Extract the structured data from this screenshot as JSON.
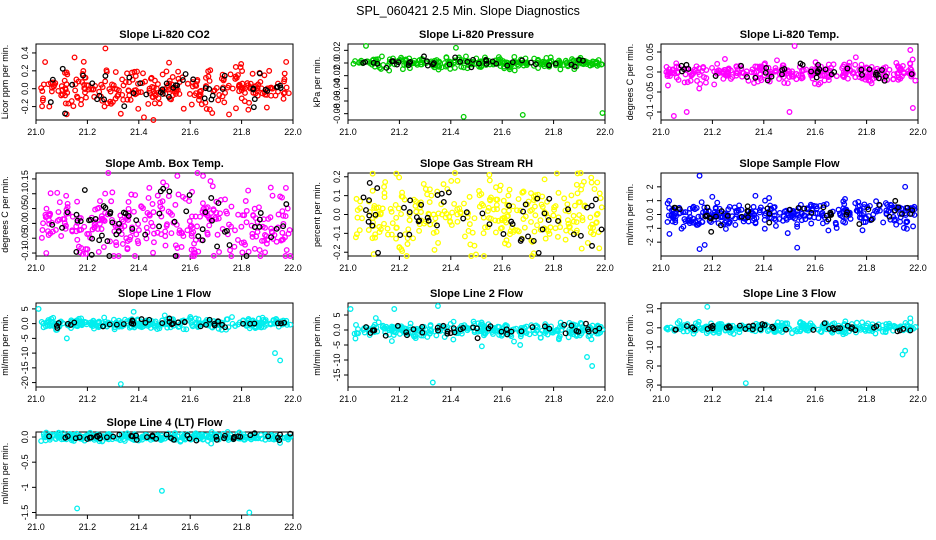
{
  "page_title": "SPL_060421  2.5 Min. Slope Diagnostics",
  "x_ticks": [
    21.0,
    21.2,
    21.4,
    21.6,
    21.8,
    22.0
  ],
  "chart_data": [
    {
      "type": "scatter",
      "title": "Slope Li-820 CO2",
      "ylabel": "Licor ppm per min.",
      "xlim": [
        21.0,
        22.0
      ],
      "ylim": [
        -0.35,
        0.5
      ],
      "yticks": [
        -0.2,
        0.0,
        0.2,
        0.4
      ],
      "color": "#ff0000",
      "black_color": "#000000",
      "spread": 0.12,
      "n": 280,
      "nb": 45,
      "outliers": [
        [
          21.27,
          0.45
        ],
        [
          21.33,
          -0.28
        ],
        [
          21.15,
          0.35
        ],
        [
          21.42,
          -0.32
        ]
      ]
    },
    {
      "type": "scatter",
      "title": "Slope Li-820 Pressure",
      "ylabel": "kPa per min.",
      "xlim": [
        21.0,
        22.0
      ],
      "ylim": [
        -0.09,
        0.03
      ],
      "yticks": [
        -0.08,
        -0.06,
        -0.04,
        -0.02,
        0.0,
        0.02
      ],
      "color": "#00cc00",
      "black_color": "#000000",
      "center": 0.0,
      "spread": 0.004,
      "n": 260,
      "nb": 40,
      "outliers": [
        [
          21.07,
          0.027
        ],
        [
          21.45,
          -0.085
        ],
        [
          21.68,
          -0.082
        ],
        [
          21.99,
          -0.079
        ],
        [
          21.16,
          -0.012
        ],
        [
          21.42,
          0.024
        ]
      ]
    },
    {
      "type": "scatter",
      "title": "Slope Li-820 Temp.",
      "ylabel": "degrees C per min.",
      "xlim": [
        21.0,
        22.0
      ],
      "ylim": [
        -0.12,
        0.07
      ],
      "yticks": [
        -0.1,
        -0.05,
        0.0,
        0.05
      ],
      "color": "#ff00ff",
      "black_color": "#000000",
      "spread": 0.012,
      "n": 300,
      "nb": 40,
      "outliers": [
        [
          21.05,
          -0.11
        ],
        [
          21.1,
          -0.1
        ],
        [
          21.5,
          -0.1
        ],
        [
          21.52,
          0.065
        ],
        [
          21.97,
          0.055
        ],
        [
          21.98,
          -0.09
        ]
      ]
    },
    {
      "type": "scatter",
      "title": "Slope Amb. Box Temp.",
      "ylabel": "degrees C per min.",
      "xlim": [
        21.0,
        22.0
      ],
      "ylim": [
        -0.11,
        0.17
      ],
      "yticks": [
        -0.1,
        -0.05,
        0.0,
        0.05,
        0.1,
        0.15
      ],
      "color": "#ff00ff",
      "black_color": "#000000",
      "spread": 0.06,
      "n": 320,
      "nb": 60,
      "outliers": [
        [
          21.55,
          0.16
        ],
        [
          21.65,
          0.16
        ],
        [
          21.04,
          -0.1
        ]
      ]
    },
    {
      "type": "scatter",
      "title": "Slope Gas Stream RH",
      "ylabel": "percent per min.",
      "xlim": [
        21.0,
        22.0
      ],
      "ylim": [
        -0.22,
        0.22
      ],
      "yticks": [
        -0.2,
        -0.1,
        0.0,
        0.1,
        0.2
      ],
      "color": "#ffff00",
      "black_color": "#000000",
      "spread": 0.1,
      "n": 300,
      "nb": 55,
      "outliers": [
        [
          21.1,
          -0.21
        ],
        [
          21.55,
          0.21
        ],
        [
          21.97,
          0.17
        ]
      ]
    },
    {
      "type": "scatter",
      "title": "Slope Sample Flow",
      "ylabel": "ml/min per min.",
      "xlim": [
        21.0,
        22.0
      ],
      "ylim": [
        -3.0,
        3.0
      ],
      "yticks": [
        -2,
        -1,
        0,
        1,
        2
      ],
      "color": "#0000ff",
      "black_color": "#000000",
      "spread": 0.45,
      "n": 320,
      "nb": 45,
      "outliers": [
        [
          21.15,
          2.8
        ],
        [
          21.15,
          -2.5
        ],
        [
          21.17,
          -2.2
        ],
        [
          21.53,
          -2.4
        ],
        [
          21.95,
          2.0
        ]
      ]
    },
    {
      "type": "scatter",
      "title": "Slope Line 1 Flow",
      "ylabel": "ml/min per min.",
      "xlim": [
        21.0,
        22.0
      ],
      "ylim": [
        -21.5,
        7.0
      ],
      "yticks": [
        -20,
        -15,
        -10,
        -5,
        0,
        5
      ],
      "color": "#00eeee",
      "black_color": "#000000",
      "spread": 0.9,
      "n": 300,
      "nb": 40,
      "outliers": [
        [
          21.33,
          -20.5
        ],
        [
          21.95,
          -12.5
        ],
        [
          21.93,
          -10.0
        ],
        [
          21.12,
          -5.0
        ],
        [
          21.01,
          5.0
        ],
        [
          21.38,
          4.0
        ]
      ]
    },
    {
      "type": "scatter",
      "title": "Slope Line 2 Flow",
      "ylabel": "ml/min per min.",
      "xlim": [
        21.0,
        22.0
      ],
      "ylim": [
        -19.0,
        9.0
      ],
      "yticks": [
        -15,
        -10,
        -5,
        0,
        5
      ],
      "color": "#00eeee",
      "black_color": "#000000",
      "spread": 1.2,
      "n": 300,
      "nb": 45,
      "outliers": [
        [
          21.33,
          -17.5
        ],
        [
          21.95,
          -12.0
        ],
        [
          21.93,
          -9.0
        ],
        [
          21.01,
          7.0
        ],
        [
          21.35,
          8.0
        ],
        [
          21.18,
          7.0
        ],
        [
          21.67,
          -5.0
        ]
      ]
    },
    {
      "type": "scatter",
      "title": "Slope Line 3 Flow",
      "ylabel": "ml/min per min.",
      "xlim": [
        21.0,
        22.0
      ],
      "ylim": [
        -31.0,
        13.0
      ],
      "yticks": [
        -30,
        -20,
        -10,
        0,
        10
      ],
      "color": "#00eeee",
      "black_color": "#000000",
      "spread": 1.4,
      "n": 300,
      "nb": 40,
      "outliers": [
        [
          21.33,
          -29.0
        ],
        [
          21.94,
          -14.0
        ],
        [
          21.95,
          -12.0
        ],
        [
          21.18,
          11.0
        ],
        [
          21.97,
          5.0
        ]
      ]
    },
    {
      "type": "scatter",
      "title": "Slope Line 4 (LT) Flow",
      "ylabel": "ml/min per min.",
      "xlim": [
        21.0,
        22.0
      ],
      "ylim": [
        -1.55,
        0.1
      ],
      "yticks": [
        -1.5,
        -1.0,
        -0.5,
        0.0
      ],
      "color": "#00eeee",
      "black_color": "#000000",
      "spread": 0.04,
      "n": 300,
      "nb": 45,
      "outliers": [
        [
          21.16,
          -1.42
        ],
        [
          21.49,
          -1.07
        ],
        [
          21.83,
          -1.5
        ]
      ]
    }
  ]
}
